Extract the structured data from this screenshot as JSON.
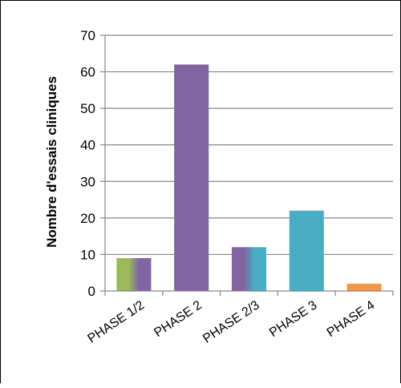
{
  "chart_data": {
    "type": "bar",
    "title": "",
    "xlabel": "",
    "ylabel": "Nombre d'essais cliniques",
    "categories": [
      "PHASE 1/2",
      "PHASE 2",
      "PHASE 2/3",
      "PHASE 3",
      "PHASE 4"
    ],
    "values": [
      9,
      62,
      12,
      22,
      2
    ],
    "ylim": [
      0,
      70
    ],
    "yticks": [
      0,
      10,
      20,
      30,
      40,
      50,
      60,
      70
    ],
    "grid": true,
    "legend": "none",
    "colors": {
      "PHASE 1/2": [
        "#9bbb59",
        "#8064a2"
      ],
      "PHASE 2": [
        "#8064a2",
        "#8064a2"
      ],
      "PHASE 2/3": [
        "#8064a2",
        "#4bacc6"
      ],
      "PHASE 3": [
        "#4bacc6",
        "#4bacc6"
      ],
      "PHASE 4": [
        "#f79646",
        "#f79646"
      ]
    }
  }
}
